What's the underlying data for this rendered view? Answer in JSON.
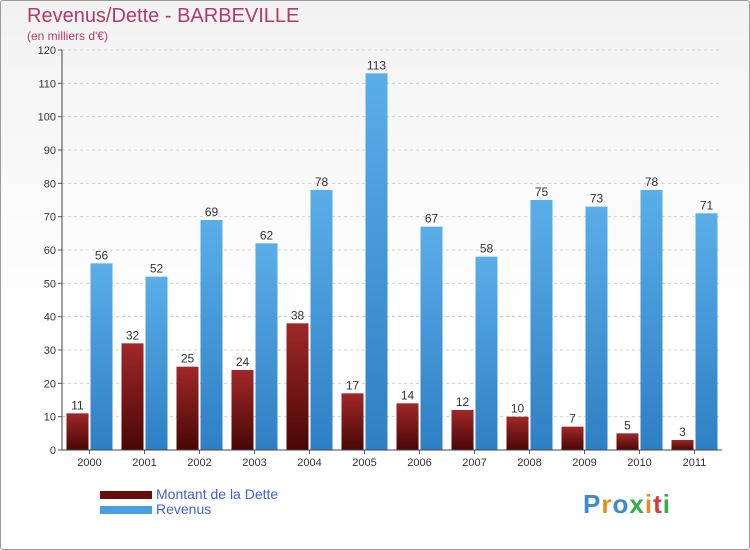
{
  "title": "Revenus/Dette - BARBEVILLE",
  "subtitle": "(en milliers d'€)",
  "logo": {
    "text": "Proxiti",
    "colors": [
      "#3a8bd0",
      "#e8901e",
      "#3a8bd0",
      "#2fae4b",
      "#e8901e",
      "#d63b3b",
      "#2fae4b"
    ]
  },
  "chart_data": {
    "type": "bar",
    "title": "Revenus/Dette - BARBEVILLE",
    "ylabel": "(en milliers d'€)",
    "xlabel": "",
    "ylim": [
      0,
      120
    ],
    "yticks": [
      0,
      10,
      20,
      30,
      40,
      50,
      60,
      70,
      80,
      90,
      100,
      110,
      120
    ],
    "grid": true,
    "legend_position": "bottom-left",
    "categories": [
      "2000",
      "2001",
      "2002",
      "2003",
      "2004",
      "2005",
      "2006",
      "2007",
      "2008",
      "2009",
      "2010",
      "2011"
    ],
    "series": [
      {
        "name": "Montant de la Dette",
        "color": "#7a1010",
        "values": [
          11,
          32,
          25,
          24,
          38,
          17,
          14,
          12,
          10,
          7,
          5,
          3
        ]
      },
      {
        "name": "Revenus",
        "color": "#4a9fe0",
        "values": [
          56,
          52,
          69,
          62,
          78,
          113,
          67,
          58,
          75,
          73,
          78,
          71
        ]
      }
    ]
  }
}
